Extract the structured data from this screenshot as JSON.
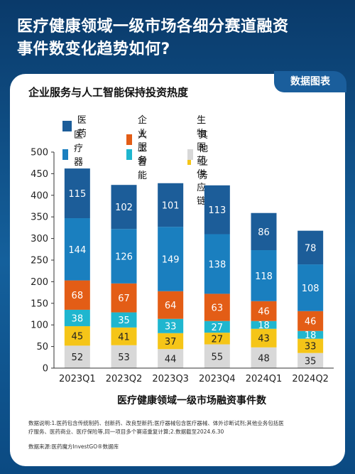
{
  "header": {
    "line1": "医疗健康领域一级市场各细分赛道融资",
    "line2": "事件数变化趋势如何?"
  },
  "badge": "数据图表",
  "chart_title": "企业服务与人工智能保持投资热度",
  "notes": {
    "line1": "数据说明:1.医药包含传统制药、创新药、改良型新药;医疗器械包含医疗器械、体外诊断试剂;其他业务包括医",
    "line2": "疗服务、医药商业、医疗保险等,同一项目多个赛道重复计算;2.数据截至2024.6.30",
    "source": "数据来源:医药魔方InvestGO®数据库"
  },
  "colors": {
    "pharma": "#1c5d99",
    "enterprise": "#e35d16",
    "bio_supply": "#f5c518",
    "device": "#1a7fbf",
    "ai": "#1fb6cf",
    "other": "#d8d8d8"
  },
  "chart_data": {
    "type": "bar",
    "stacked": true,
    "categories": [
      "2023Q1",
      "2023Q2",
      "2023Q3",
      "2023Q4",
      "2024Q1",
      "2024Q2"
    ],
    "series": [
      {
        "name": "其他业务",
        "key": "other",
        "values": [
          52,
          53,
          44,
          55,
          48,
          35
        ],
        "text_color": "#222222"
      },
      {
        "name": "生物医药供应链",
        "key": "bio_supply",
        "values": [
          45,
          41,
          37,
          27,
          43,
          33
        ],
        "text_color": "#222222"
      },
      {
        "name": "人工智能",
        "key": "ai",
        "values": [
          38,
          35,
          33,
          27,
          18,
          18
        ],
        "text_color": "#ffffff"
      },
      {
        "name": "企业服务",
        "key": "enterprise",
        "values": [
          68,
          67,
          64,
          63,
          46,
          46
        ],
        "text_color": "#ffffff"
      },
      {
        "name": "医疗器械",
        "key": "device",
        "values": [
          144,
          126,
          149,
          138,
          118,
          108
        ],
        "text_color": "#ffffff"
      },
      {
        "name": "医药",
        "key": "pharma",
        "values": [
          115,
          102,
          101,
          113,
          86,
          78
        ],
        "text_color": "#ffffff"
      }
    ],
    "legend_order": [
      "医药",
      "企业服务",
      "生物医药供应链",
      "医疗器械",
      "人工智能",
      "其他业务"
    ],
    "legend_placement": "top",
    "xlabel": "医疗健康领域一级市场融资事件数",
    "ylabel": "",
    "ylim": [
      0,
      500
    ],
    "yticks": [
      0,
      50,
      100,
      150,
      200,
      250,
      300,
      350,
      400,
      450,
      500
    ],
    "grid": false
  }
}
